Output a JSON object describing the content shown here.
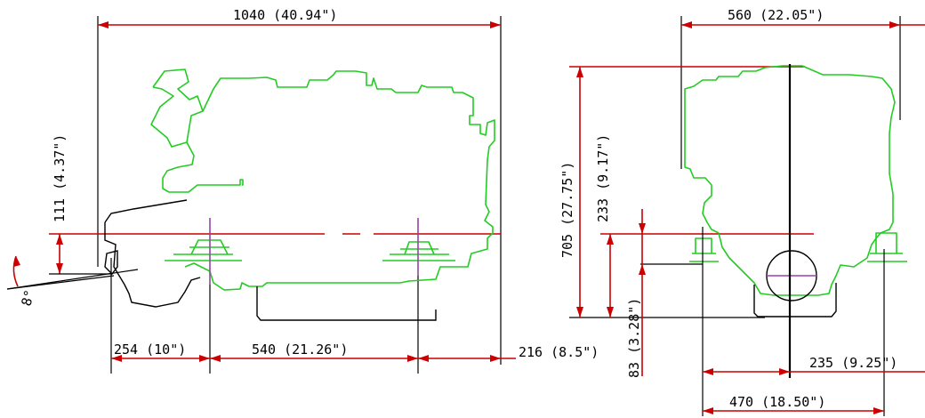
{
  "dimensions": {
    "overall_length": "1040 (40.94\")",
    "overall_width": "560 (22.05\")",
    "height_above_crank": "111 (4.37\")",
    "tilt_angle": "8°",
    "front_to_mount": "254 (10\")",
    "mount_spacing": "540 (21.26\")",
    "rear_overhang": "216 (8.5\")",
    "overall_height": "705 (27.75\")",
    "mount_height": "233 (9.17\")",
    "crank_to_foot": "83 (3.28\")",
    "half_mount_width": "235 (9.25\")",
    "mount_width": "470 (18.50\")"
  },
  "colors": {
    "dimension": "#cc0000",
    "engine_outline": "#22cc22",
    "extension": "#000000"
  }
}
